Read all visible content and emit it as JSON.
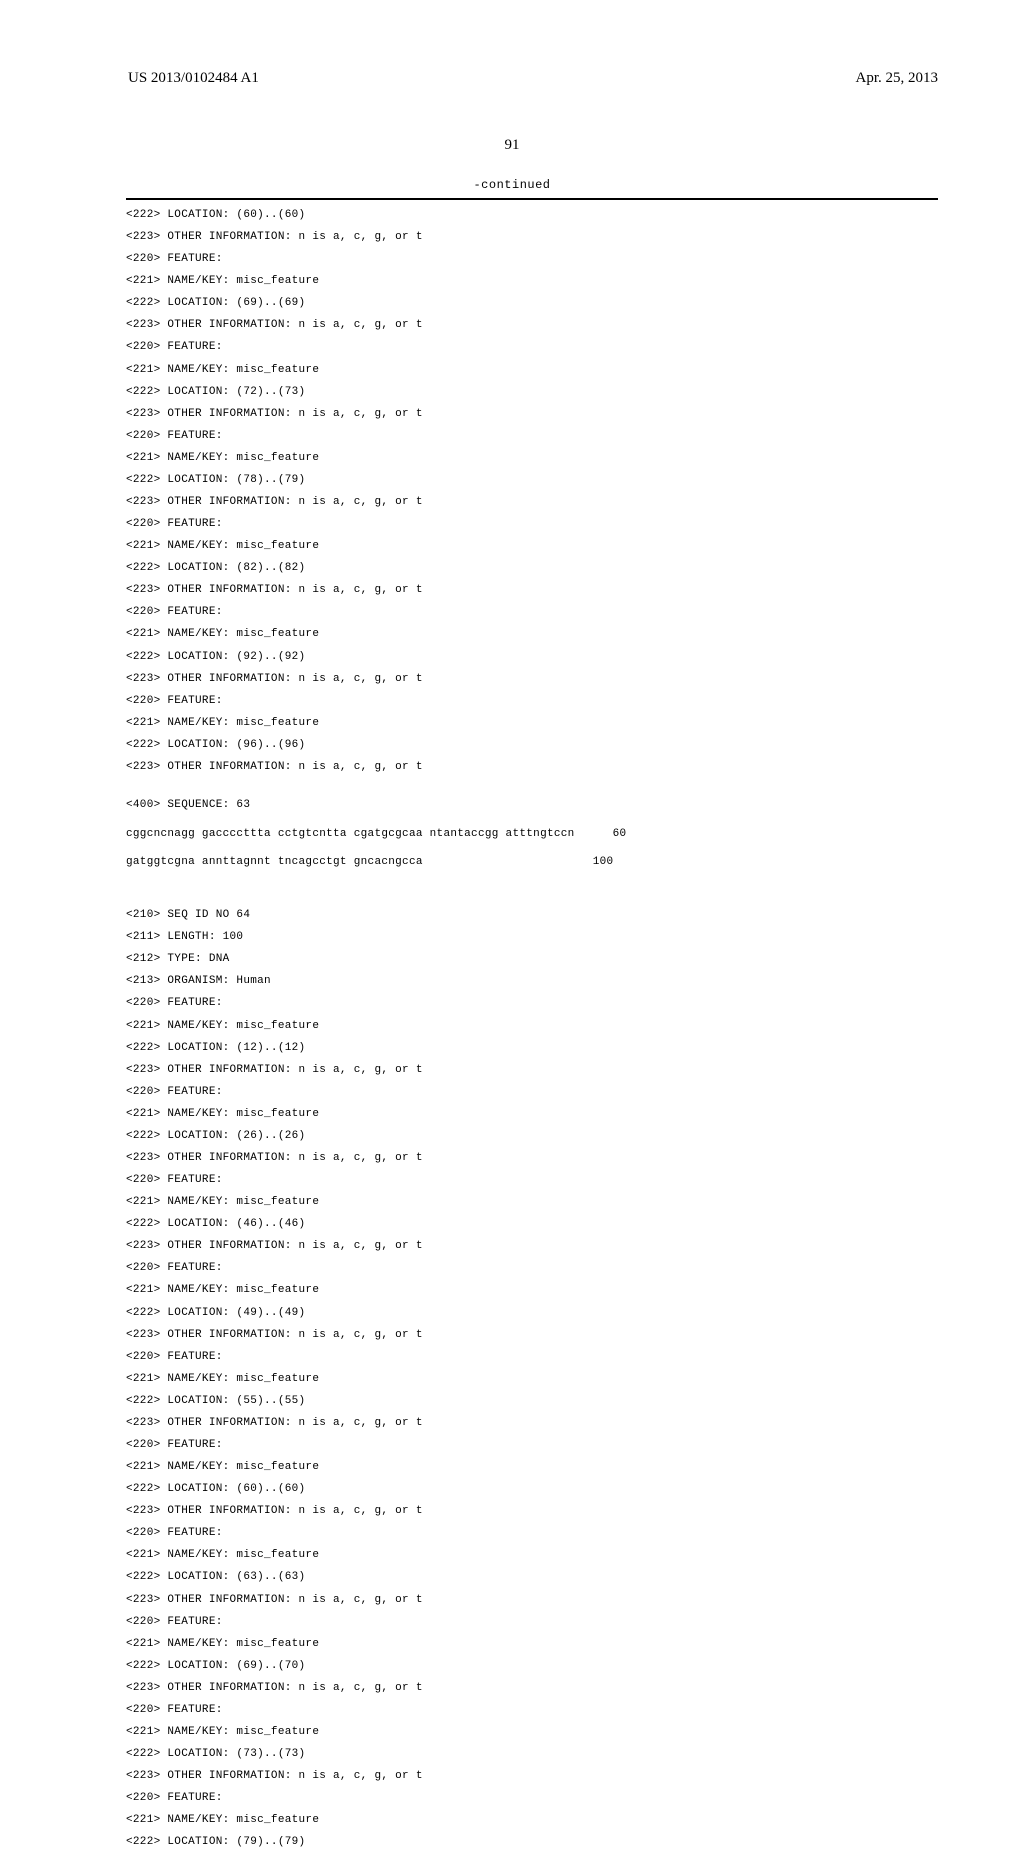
{
  "header": {
    "doc_id": "US 2013/0102484 A1",
    "date": "Apr. 25, 2013"
  },
  "page_number": "91",
  "continued_label": "-continued",
  "top_features": [
    "<222> LOCATION: (60)..(60)",
    "<223> OTHER INFORMATION: n is a, c, g, or t",
    "<220> FEATURE:",
    "<221> NAME/KEY: misc_feature",
    "<222> LOCATION: (69)..(69)",
    "<223> OTHER INFORMATION: n is a, c, g, or t",
    "<220> FEATURE:",
    "<221> NAME/KEY: misc_feature",
    "<222> LOCATION: (72)..(73)",
    "<223> OTHER INFORMATION: n is a, c, g, or t",
    "<220> FEATURE:",
    "<221> NAME/KEY: misc_feature",
    "<222> LOCATION: (78)..(79)",
    "<223> OTHER INFORMATION: n is a, c, g, or t",
    "<220> FEATURE:",
    "<221> NAME/KEY: misc_feature",
    "<222> LOCATION: (82)..(82)",
    "<223> OTHER INFORMATION: n is a, c, g, or t",
    "<220> FEATURE:",
    "<221> NAME/KEY: misc_feature",
    "<222> LOCATION: (92)..(92)",
    "<223> OTHER INFORMATION: n is a, c, g, or t",
    "<220> FEATURE:",
    "<221> NAME/KEY: misc_feature",
    "<222> LOCATION: (96)..(96)",
    "<223> OTHER INFORMATION: n is a, c, g, or t"
  ],
  "sequence_63_header": "<400> SEQUENCE: 63",
  "seq63_line1": {
    "text": "cggcncnagg gaccccttta cctgtcntta cgatgcgcaa ntantaccgg atttngtccn",
    "num": "60"
  },
  "seq63_line2": {
    "text": "gatggtcgna annttagnnt tncagcctgt gncacngcca",
    "num": "100"
  },
  "seq64_header": [
    "<210> SEQ ID NO 64",
    "<211> LENGTH: 100",
    "<212> TYPE: DNA",
    "<213> ORGANISM: Human",
    "<220> FEATURE:",
    "<221> NAME/KEY: misc_feature",
    "<222> LOCATION: (12)..(12)",
    "<223> OTHER INFORMATION: n is a, c, g, or t",
    "<220> FEATURE:",
    "<221> NAME/KEY: misc_feature",
    "<222> LOCATION: (26)..(26)",
    "<223> OTHER INFORMATION: n is a, c, g, or t",
    "<220> FEATURE:",
    "<221> NAME/KEY: misc_feature",
    "<222> LOCATION: (46)..(46)",
    "<223> OTHER INFORMATION: n is a, c, g, or t",
    "<220> FEATURE:",
    "<221> NAME/KEY: misc_feature",
    "<222> LOCATION: (49)..(49)",
    "<223> OTHER INFORMATION: n is a, c, g, or t",
    "<220> FEATURE:",
    "<221> NAME/KEY: misc_feature",
    "<222> LOCATION: (55)..(55)",
    "<223> OTHER INFORMATION: n is a, c, g, or t",
    "<220> FEATURE:",
    "<221> NAME/KEY: misc_feature",
    "<222> LOCATION: (60)..(60)",
    "<223> OTHER INFORMATION: n is a, c, g, or t",
    "<220> FEATURE:",
    "<221> NAME/KEY: misc_feature",
    "<222> LOCATION: (63)..(63)",
    "<223> OTHER INFORMATION: n is a, c, g, or t",
    "<220> FEATURE:",
    "<221> NAME/KEY: misc_feature",
    "<222> LOCATION: (69)..(70)",
    "<223> OTHER INFORMATION: n is a, c, g, or t",
    "<220> FEATURE:",
    "<221> NAME/KEY: misc_feature",
    "<222> LOCATION: (73)..(73)",
    "<223> OTHER INFORMATION: n is a, c, g, or t",
    "<220> FEATURE:",
    "<221> NAME/KEY: misc_feature",
    "<222> LOCATION: (79)..(79)"
  ]
}
